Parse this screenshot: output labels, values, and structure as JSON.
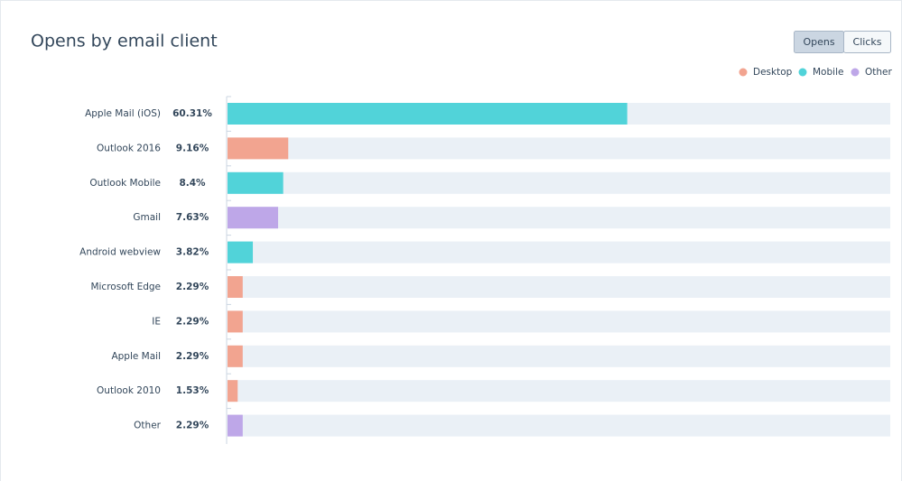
{
  "toolbar": {
    "buttons": [
      "Opens",
      "Clicks"
    ],
    "active": 0
  },
  "chart_data": {
    "type": "bar",
    "orientation": "horizontal",
    "title": "Opens by email client",
    "categories": [
      "Apple Mail (iOS)",
      "Outlook 2016",
      "Outlook Mobile",
      "Gmail",
      "Android webview",
      "Microsoft Edge",
      "IE",
      "Apple Mail",
      "Outlook 2010",
      "Other"
    ],
    "values": [
      60.31,
      9.16,
      8.4,
      7.63,
      3.82,
      2.29,
      2.29,
      2.29,
      1.53,
      2.29
    ],
    "value_labels": [
      "60.31%",
      "9.16%",
      "8.4%",
      "7.63%",
      "3.82%",
      "2.29%",
      "2.29%",
      "2.29%",
      "1.53%",
      "2.29%"
    ],
    "colors": [
      "#51d3d9",
      "#f2a490",
      "#51d3d9",
      "#bea7e8",
      "#51d3d9",
      "#f2a490",
      "#f2a490",
      "#f2a490",
      "#f2a490",
      "#bea7e8"
    ],
    "legend": [
      {
        "name": "Desktop",
        "color": "#f2a490"
      },
      {
        "name": "Mobile",
        "color": "#51d3d9"
      },
      {
        "name": "Other",
        "color": "#bea7e8"
      }
    ],
    "xlim": [
      0,
      100
    ]
  }
}
